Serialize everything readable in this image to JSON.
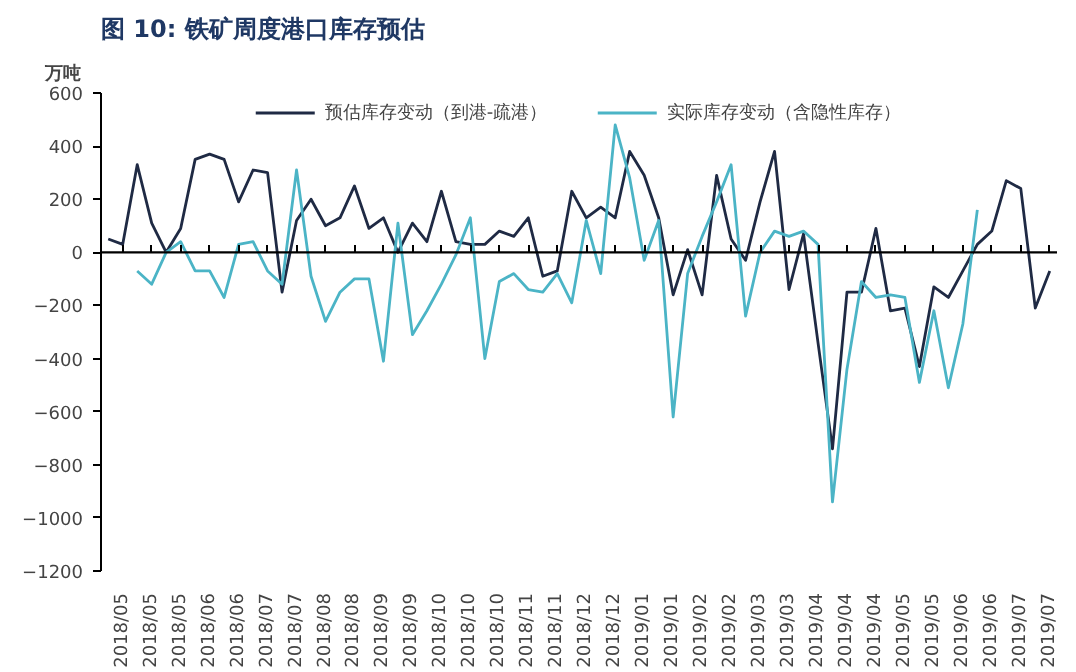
{
  "chart_data": {
    "type": "line",
    "title": "图 10:  铁矿周度港口库存预估",
    "ylabel": "万吨",
    "categories": [
      null,
      "2018/05",
      null,
      "2018/05",
      null,
      "2018/05",
      null,
      "2018/06",
      null,
      "2018/06",
      null,
      "2018/07",
      null,
      "2018/07",
      null,
      "2018/08",
      null,
      "2018/08",
      null,
      "2018/09",
      null,
      "2018/09",
      null,
      "2018/10",
      null,
      "2018/10",
      null,
      "2018/10",
      null,
      "2018/11",
      null,
      "2018/11",
      null,
      "2018/12",
      null,
      "2018/12",
      null,
      "2019/01",
      null,
      "2019/01",
      null,
      "2019/02",
      null,
      "2019/02",
      null,
      "2019/03",
      null,
      "2019/03",
      null,
      "2019/04",
      null,
      "2019/04",
      null,
      "2019/04",
      null,
      "2019/05",
      null,
      "2019/05",
      null,
      "2019/06",
      null,
      "2019/06",
      null,
      "2019/07",
      null,
      "2019/07"
    ],
    "series": [
      {
        "name": "预估库存变动（到港-疏港）",
        "color": "#1f2a44",
        "values": [
          50,
          30,
          330,
          110,
          0,
          90,
          350,
          370,
          350,
          190,
          310,
          300,
          -150,
          120,
          200,
          100,
          130,
          250,
          90,
          130,
          0,
          110,
          40,
          230,
          40,
          30,
          30,
          80,
          60,
          130,
          -90,
          -70,
          230,
          130,
          170,
          130,
          380,
          290,
          130,
          -160,
          10,
          -160,
          290,
          50,
          -30,
          190,
          380,
          -140,
          70,
          -340,
          -740,
          -150,
          -150,
          90,
          -220,
          -210,
          -430,
          -130,
          -170,
          -70,
          30,
          80,
          270,
          240,
          -210,
          -70
        ]
      },
      {
        "name": "实际库存变动（含隐性库存）",
        "color": "#4bb4c6",
        "values": [
          null,
          null,
          -70,
          -120,
          0,
          40,
          -70,
          -70,
          -170,
          30,
          40,
          -70,
          -120,
          310,
          -90,
          -260,
          -150,
          -100,
          -100,
          -410,
          110,
          -310,
          -220,
          -120,
          -10,
          130,
          -400,
          -110,
          -80,
          -140,
          -150,
          -80,
          -190,
          120,
          -80,
          480,
          280,
          -30,
          120,
          -620,
          -80,
          60,
          190,
          330,
          -240,
          0,
          80,
          60,
          80,
          30,
          -940,
          -440,
          -110,
          -170,
          -160,
          -170,
          -490,
          -220,
          -510,
          -270,
          160,
          null,
          null,
          null,
          null,
          null
        ]
      }
    ],
    "ylim": [
      -1200,
      600
    ],
    "yticks": [
      -1200,
      -1000,
      -800,
      -600,
      -400,
      -200,
      0,
      200,
      400,
      600
    ],
    "ref_lines": [
      {
        "axis": "y",
        "value": 0,
        "color": "#000000"
      }
    ],
    "grid": false,
    "legend": "top",
    "marker": "none",
    "line_style": "solid"
  }
}
